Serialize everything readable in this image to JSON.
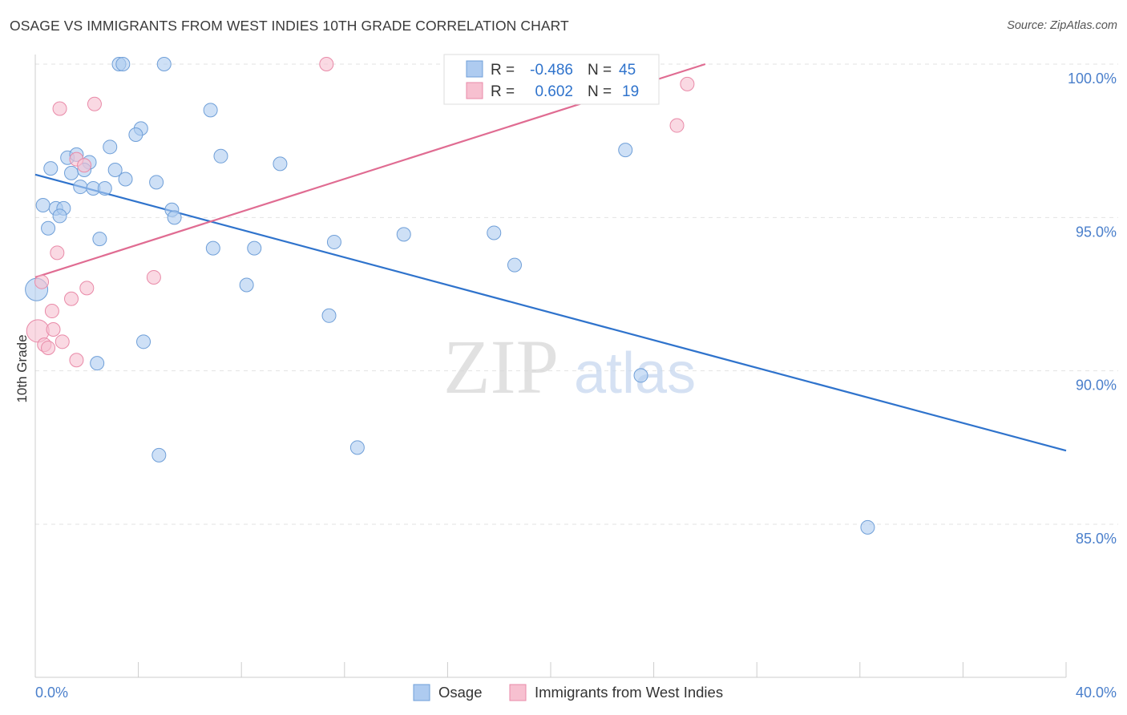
{
  "title": "OSAGE VS IMMIGRANTS FROM WEST INDIES 10TH GRADE CORRELATION CHART",
  "source": "Source: ZipAtlas.com",
  "watermark": {
    "zip": "ZIP",
    "atlas": "atlas"
  },
  "colors": {
    "osage_fill": "#aecbf0",
    "osage_stroke": "#6f9fd8",
    "osage_line": "#2f73cc",
    "wi_fill": "#f7c0d0",
    "wi_stroke": "#e98aa8",
    "wi_line": "#e06c92",
    "axis_text": "#4a7fcb",
    "grid": "#e3e3e3"
  },
  "legend": {
    "rows": [
      {
        "r_label": "R =",
        "r_value": "-0.486",
        "n_label": "N =",
        "n_value": "45"
      },
      {
        "r_label": "R =",
        "r_value": "0.602",
        "n_label": "N =",
        "n_value": "19"
      }
    ]
  },
  "chart_data": {
    "type": "scatter",
    "title": "OSAGE VS IMMIGRANTS FROM WEST INDIES 10TH GRADE CORRELATION CHART",
    "xlabel": "",
    "ylabel": "10th Grade",
    "xlim": [
      0,
      40
    ],
    "ylim": [
      80.5,
      100.5
    ],
    "x_tick_labels": [
      "0.0%",
      "40.0%"
    ],
    "y_ticks": [
      85,
      90,
      95,
      100
    ],
    "y_tick_labels": [
      "85.0%",
      "90.0%",
      "95.0%",
      "100.0%"
    ],
    "grid": true,
    "series": [
      {
        "name": "Osage",
        "trend": {
          "x": [
            0,
            40
          ],
          "y": [
            96.4,
            87.4
          ]
        },
        "points": [
          {
            "x": 3.25,
            "y": 100.0
          },
          {
            "x": 3.4,
            "y": 100.0
          },
          {
            "x": 5.0,
            "y": 100.0
          },
          {
            "x": 6.8,
            "y": 98.5
          },
          {
            "x": 4.1,
            "y": 97.9
          },
          {
            "x": 3.9,
            "y": 97.7
          },
          {
            "x": 2.9,
            "y": 97.3
          },
          {
            "x": 7.2,
            "y": 97.0
          },
          {
            "x": 1.25,
            "y": 96.95
          },
          {
            "x": 1.6,
            "y": 97.05
          },
          {
            "x": 2.1,
            "y": 96.8
          },
          {
            "x": 9.5,
            "y": 96.75
          },
          {
            "x": 0.6,
            "y": 96.6
          },
          {
            "x": 1.4,
            "y": 96.45
          },
          {
            "x": 1.9,
            "y": 96.55
          },
          {
            "x": 3.1,
            "y": 96.55
          },
          {
            "x": 3.5,
            "y": 96.25
          },
          {
            "x": 4.7,
            "y": 96.15
          },
          {
            "x": 1.75,
            "y": 96.0
          },
          {
            "x": 2.25,
            "y": 95.95
          },
          {
            "x": 2.7,
            "y": 95.95
          },
          {
            "x": 0.3,
            "y": 95.4
          },
          {
            "x": 0.8,
            "y": 95.3
          },
          {
            "x": 1.1,
            "y": 95.3
          },
          {
            "x": 5.3,
            "y": 95.25
          },
          {
            "x": 0.95,
            "y": 95.05
          },
          {
            "x": 5.4,
            "y": 95.0
          },
          {
            "x": 0.5,
            "y": 94.65
          },
          {
            "x": 2.5,
            "y": 94.3
          },
          {
            "x": 11.6,
            "y": 94.2
          },
          {
            "x": 14.3,
            "y": 94.45
          },
          {
            "x": 17.8,
            "y": 94.5
          },
          {
            "x": 6.9,
            "y": 94.0
          },
          {
            "x": 8.5,
            "y": 94.0
          },
          {
            "x": 18.6,
            "y": 93.45
          },
          {
            "x": 0.05,
            "y": 92.65
          },
          {
            "x": 8.2,
            "y": 92.8
          },
          {
            "x": 11.4,
            "y": 91.8
          },
          {
            "x": 4.2,
            "y": 90.95
          },
          {
            "x": 2.4,
            "y": 90.25
          },
          {
            "x": 23.5,
            "y": 89.85
          },
          {
            "x": 4.8,
            "y": 87.25
          },
          {
            "x": 12.5,
            "y": 87.5
          },
          {
            "x": 32.3,
            "y": 84.9
          },
          {
            "x": 22.9,
            "y": 97.2
          }
        ]
      },
      {
        "name": "Immigrants from West Indies",
        "trend": {
          "x": [
            0,
            26
          ],
          "y": [
            93.05,
            100.0
          ]
        },
        "points": [
          {
            "x": 11.3,
            "y": 100.0
          },
          {
            "x": 25.3,
            "y": 99.35
          },
          {
            "x": 2.3,
            "y": 98.7
          },
          {
            "x": 0.95,
            "y": 98.55
          },
          {
            "x": 24.9,
            "y": 98.0
          },
          {
            "x": 1.6,
            "y": 96.9
          },
          {
            "x": 1.9,
            "y": 96.7
          },
          {
            "x": 0.85,
            "y": 93.85
          },
          {
            "x": 4.6,
            "y": 93.05
          },
          {
            "x": 0.25,
            "y": 92.9
          },
          {
            "x": 2.0,
            "y": 92.7
          },
          {
            "x": 1.4,
            "y": 92.35
          },
          {
            "x": 0.65,
            "y": 91.95
          },
          {
            "x": 0.1,
            "y": 91.3
          },
          {
            "x": 0.7,
            "y": 91.35
          },
          {
            "x": 1.05,
            "y": 90.95
          },
          {
            "x": 0.35,
            "y": 90.85
          },
          {
            "x": 0.5,
            "y": 90.75
          },
          {
            "x": 1.6,
            "y": 90.35
          }
        ]
      }
    ]
  }
}
